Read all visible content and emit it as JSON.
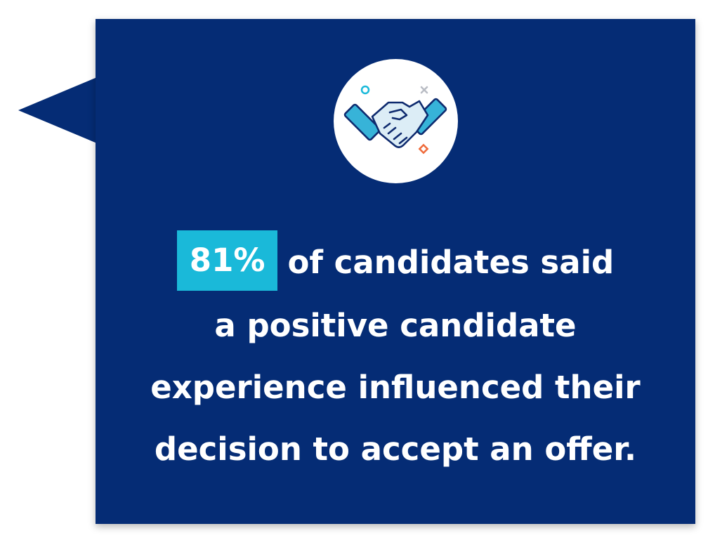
{
  "colors": {
    "bubble": "#052c75",
    "accent": "#1ab9d9",
    "icon_stroke": "#0e2a6e",
    "icon_fill": "#37b3d8",
    "icon_hand": "#dcedf6",
    "decor_cyan": "#1ab9d9",
    "decor_orange": "#ef6a3a",
    "decor_gray": "#b9bcc4"
  },
  "icon": {
    "name": "handshake-icon"
  },
  "stat": {
    "highlight": "81%",
    "line1_rest": "of candidates said",
    "line2": "a positive candidate",
    "line3": "experience influenced their",
    "line4": "decision to accept an offer."
  }
}
